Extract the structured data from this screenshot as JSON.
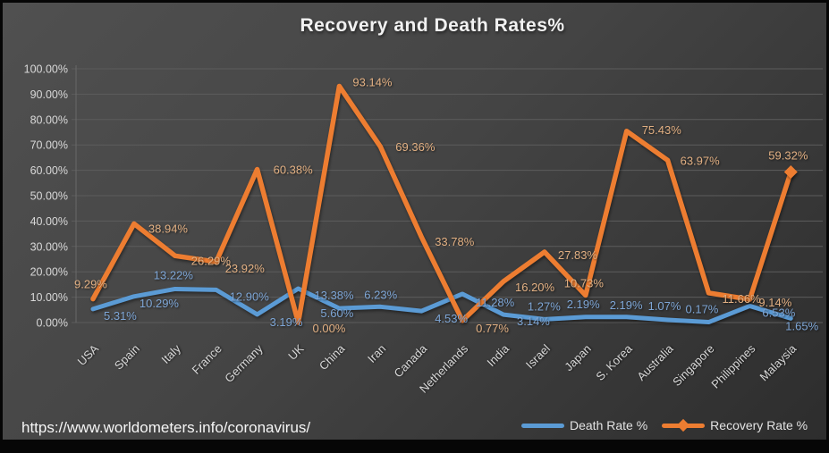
{
  "chart_data": {
    "type": "line",
    "title": "Recovery and Death Rates%",
    "categories": [
      "USA",
      "Spain",
      "Italy",
      "France",
      "Germany",
      "UK",
      "China",
      "Iran",
      "Canada",
      "Netherlands",
      "India",
      "Israel",
      "Japan",
      "S. Korea",
      "Australia",
      "Singapore",
      "Philippines",
      "Malaysia"
    ],
    "series": [
      {
        "name": "Death Rate %",
        "color": "#5B9BD5",
        "label_color": "#7ea6d6",
        "values": [
          5.31,
          10.29,
          13.22,
          12.9,
          3.19,
          13.38,
          5.6,
          6.23,
          4.53,
          11.28,
          3.14,
          1.27,
          2.19,
          2.19,
          1.07,
          0.17,
          6.53,
          1.65
        ],
        "labels": [
          "5.31%",
          "10.29%",
          "13.22%",
          "12.90%",
          "3.19%",
          "13.38%",
          "5.60%",
          "6.23%",
          "4.53%",
          "11.28%",
          "3.14%",
          "1.27%",
          "2.19%",
          "2.19%",
          "1.07%",
          "0.17%",
          "6.53%",
          "1.65%"
        ]
      },
      {
        "name": "Recovery Rate %",
        "color": "#ED7D31",
        "label_color": "#e2b083",
        "end_marker": "diamond",
        "values": [
          9.29,
          38.94,
          26.29,
          23.92,
          60.38,
          0.0,
          93.14,
          69.36,
          33.78,
          0.77,
          16.2,
          27.83,
          10.73,
          75.43,
          63.97,
          11.66,
          9.14,
          59.32
        ],
        "labels": [
          "9.29%",
          "38.94%",
          "26.29%",
          "23.92%",
          "60.38%",
          "0.00%",
          "93.14%",
          "69.36%",
          "33.78%",
          "0.77%",
          "16.20%",
          "27.83%",
          "10.73%",
          "75.43%",
          "63.97%",
          "11.66%",
          "9.14%",
          "59.32%"
        ]
      }
    ],
    "y_axis": {
      "min": 0,
      "max": 100,
      "step": 10,
      "tick_labels": [
        "0.00%",
        "10.00%",
        "20.00%",
        "30.00%",
        "40.00%",
        "50.00%",
        "60.00%",
        "70.00%",
        "80.00%",
        "90.00%",
        "100.00%"
      ]
    },
    "grid": true,
    "data_labels": true,
    "legend_position": "bottom-right"
  },
  "footer": {
    "url": "https://www.worldometers.info/coronavirus/"
  }
}
